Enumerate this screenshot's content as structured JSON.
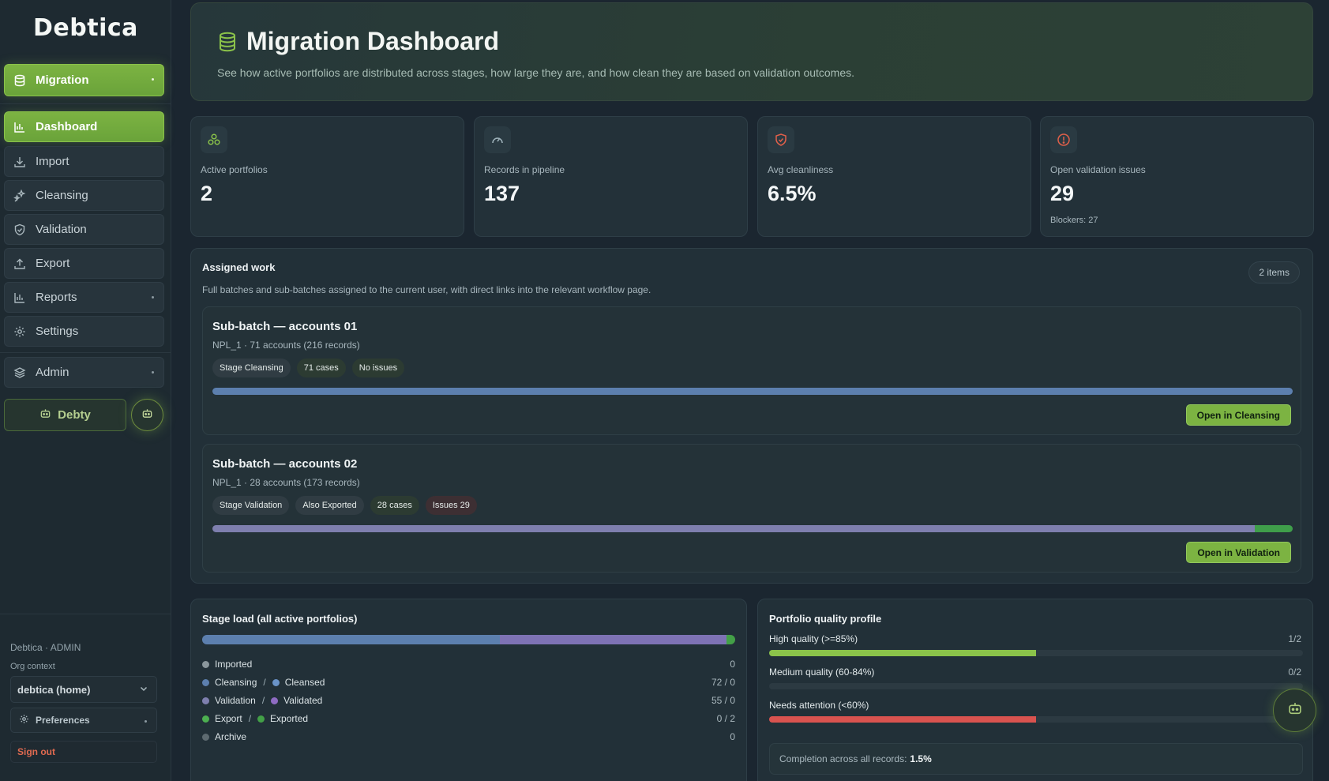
{
  "sidebar": {
    "logo": "Debtica",
    "section": {
      "label": "Migration"
    },
    "items": [
      {
        "label": "Dashboard",
        "icon": "bar-chart-icon"
      },
      {
        "label": "Import",
        "icon": "download-icon"
      },
      {
        "label": "Cleansing",
        "icon": "sparkle-icon"
      },
      {
        "label": "Validation",
        "icon": "shield-check-icon"
      },
      {
        "label": "Export",
        "icon": "upload-icon"
      },
      {
        "label": "Reports",
        "icon": "bar-chart-icon"
      },
      {
        "label": "Settings",
        "icon": "gear-icon"
      },
      {
        "label": "Admin",
        "icon": "layers-icon"
      }
    ],
    "debty_label": "Debty",
    "footer": {
      "account": "Debtica · ADMIN",
      "org_label": "Org context",
      "org_value": "debtica (home)",
      "preferences": "Preferences",
      "signout": "Sign out"
    }
  },
  "header": {
    "title": "Migration Dashboard",
    "subtitle": "See how active portfolios are distributed across stages, how large they are, and how clean they are based on validation outcomes."
  },
  "stats": [
    {
      "label": "Active portfolios",
      "value": "2",
      "icon": "cluster-icon",
      "color": "#8bc34a"
    },
    {
      "label": "Records in pipeline",
      "value": "137",
      "icon": "gauge-icon",
      "color": "#9fb3bb"
    },
    {
      "label": "Avg cleanliness",
      "value": "6.5%",
      "icon": "shield-icon",
      "color": "#e0604a"
    },
    {
      "label": "Open validation issues",
      "value": "29",
      "icon": "alert-icon",
      "color": "#e0604a",
      "note": "Blockers: 27"
    }
  ],
  "assigned": {
    "title": "Assigned work",
    "subtitle": "Full batches and sub-batches assigned to the current user, with direct links into the relevant workflow page.",
    "count": "2 items",
    "batches": [
      {
        "title": "Sub-batch — accounts 01",
        "meta": "NPL_1 · 71 accounts (216 records)",
        "chips": [
          "Stage Cleansing",
          "71 cases",
          "No issues"
        ],
        "progress": {
          "cleansing": 1.0,
          "validation": 0.0,
          "export": 0.0
        },
        "action": "Open in Cleansing"
      },
      {
        "title": "Sub-batch — accounts 02",
        "meta": "NPL_1 · 28 accounts (173 records)",
        "chips": [
          "Stage Validation",
          "Also Exported",
          "28 cases",
          "Issues 29"
        ],
        "progress": {
          "cleansing": 0.0,
          "validation": 0.965,
          "export": 0.035
        },
        "action": "Open in Validation"
      }
    ]
  },
  "stage_load": {
    "title": "Stage load (all active portfolios)",
    "rows": [
      {
        "a": "Imported",
        "a_color": "#8a969c",
        "b": "",
        "b_color": "",
        "value": "0"
      },
      {
        "a": "Cleansing",
        "a_color": "#5c7fae",
        "b": "Cleansed",
        "b_color": "#6a93c8",
        "value": "72 / 0"
      },
      {
        "a": "Validation",
        "a_color": "#7e7fae",
        "b": "Validated",
        "b_color": "#8e6bc2",
        "value": "55 / 0"
      },
      {
        "a": "Export",
        "a_color": "#4caf50",
        "b": "Exported",
        "b_color": "#43a047",
        "value": "0 / 2"
      },
      {
        "a": "Archive",
        "a_color": "#5d6a70",
        "b": "",
        "b_color": "",
        "value": "0"
      }
    ],
    "bar_shares": {
      "cleansing": 0.558,
      "validation": 0.426,
      "export": 0.016
    }
  },
  "quality": {
    "title": "Portfolio quality profile",
    "rows": [
      {
        "label": "High quality (>=85%)",
        "fraction": "1/2",
        "fill": 0.5,
        "color": "#8bc34a"
      },
      {
        "label": "Medium quality (60-84%)",
        "fraction": "0/2",
        "fill": 0.0,
        "color": "#d4a340"
      },
      {
        "label": "Needs attention (<60%)",
        "fraction": "",
        "fill": 0.5,
        "color": "#d9534f"
      }
    ],
    "completion_label": "Completion across all records:",
    "completion_value": "1.5%"
  }
}
